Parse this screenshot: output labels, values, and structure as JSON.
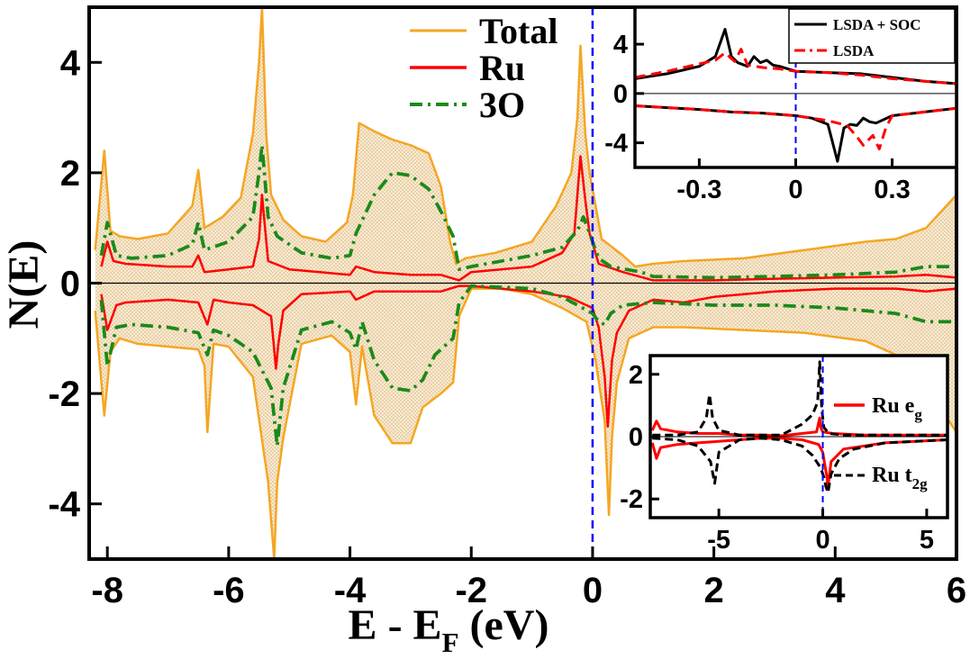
{
  "chart_data": [
    {
      "type": "line",
      "title": "",
      "xlabel": "E - E",
      "xlabel_sub": "F",
      "xlabel_unit": " (eV)",
      "ylabel": "N(E)",
      "xlim": [
        -8.3,
        6
      ],
      "ylim": [
        -5,
        5
      ],
      "xticks": [
        -8,
        -6,
        -4,
        -2,
        0,
        2,
        4,
        6
      ],
      "yticks": [
        -4,
        -2,
        0,
        2,
        4
      ],
      "fermi_level": 0,
      "colors": {
        "Total": "#f5a623",
        "Ru": "#ff0000",
        "3O": "#1a8a1a",
        "fermi": "#0000ff",
        "fill": "#e8cfa0"
      },
      "series": [
        {
          "name": "Total",
          "style": "solid",
          "channel": "up",
          "x": [
            -8.2,
            -8.05,
            -7.95,
            -7.8,
            -7.5,
            -7.0,
            -6.6,
            -6.5,
            -6.4,
            -6.1,
            -5.8,
            -5.6,
            -5.5,
            -5.45,
            -5.38,
            -5.3,
            -5.1,
            -4.8,
            -4.4,
            -4.05,
            -3.95,
            -3.85,
            -3.6,
            -3.3,
            -3.0,
            -2.7,
            -2.5,
            -2.35,
            -2.25,
            -2.1,
            -1.6,
            -1.0,
            -0.6,
            -0.35,
            -0.25,
            -0.2,
            -0.12,
            -0.05,
            0.15,
            0.5,
            0.7,
            1.0,
            1.5,
            2.5,
            3.5,
            4.5,
            5.0,
            5.5,
            6.0
          ],
          "values": [
            0.6,
            2.4,
            0.95,
            0.85,
            0.8,
            0.9,
            1.4,
            2.05,
            1.0,
            1.2,
            1.55,
            2.7,
            4.0,
            5.0,
            2.7,
            1.6,
            1.15,
            0.85,
            0.75,
            1.1,
            1.6,
            2.9,
            2.75,
            2.6,
            2.5,
            2.35,
            1.75,
            0.75,
            0.35,
            0.45,
            0.55,
            0.75,
            1.4,
            2.0,
            3.0,
            4.3,
            2.7,
            2.0,
            0.8,
            0.5,
            0.3,
            0.35,
            0.4,
            0.45,
            0.6,
            0.75,
            0.8,
            1.0,
            1.6
          ]
        },
        {
          "name": "Total",
          "style": "solid",
          "channel": "down",
          "x": [
            -8.2,
            -8.05,
            -7.95,
            -7.8,
            -7.5,
            -7.0,
            -6.5,
            -6.4,
            -6.35,
            -6.25,
            -6.0,
            -5.6,
            -5.35,
            -5.25,
            -5.2,
            -5.1,
            -4.8,
            -4.3,
            -4.0,
            -3.9,
            -3.8,
            -3.6,
            -3.3,
            -3.0,
            -2.8,
            -2.5,
            -2.3,
            -2.2,
            -2.0,
            -1.5,
            -1.0,
            -0.5,
            -0.1,
            0.05,
            0.2,
            0.27,
            0.32,
            0.4,
            0.6,
            1.0,
            1.5,
            2.5,
            3.5,
            4.5,
            5.0,
            5.5,
            6.0
          ],
          "values": [
            -0.5,
            -2.4,
            -1.25,
            -1.0,
            -1.1,
            -1.15,
            -1.2,
            -1.5,
            -2.7,
            -1.1,
            -1.15,
            -1.7,
            -3.6,
            -5.0,
            -3.6,
            -2.8,
            -1.1,
            -0.95,
            -1.25,
            -2.2,
            -1.15,
            -2.4,
            -2.9,
            -2.9,
            -2.25,
            -2.0,
            -1.8,
            -0.6,
            -0.1,
            -0.1,
            -0.2,
            -0.45,
            -0.7,
            -1.4,
            -2.5,
            -4.2,
            -2.8,
            -1.8,
            -1.0,
            -0.8,
            -0.8,
            -0.85,
            -0.9,
            -1.05,
            -1.3,
            -1.9,
            -2.7
          ]
        },
        {
          "name": "Ru",
          "style": "solid",
          "channel": "up",
          "x": [
            -8.1,
            -8.0,
            -7.9,
            -7.7,
            -7.0,
            -6.6,
            -6.5,
            -6.4,
            -6.0,
            -5.6,
            -5.5,
            -5.45,
            -5.35,
            -5.0,
            -4.5,
            -4.0,
            -3.9,
            -3.6,
            -3.0,
            -2.5,
            -2.2,
            -2.0,
            -1.0,
            -0.5,
            -0.3,
            -0.2,
            -0.12,
            -0.05,
            0.1,
            0.5,
            1.0,
            2.0,
            3.0,
            4.0,
            5.0,
            5.5,
            6.0
          ],
          "values": [
            0.3,
            0.75,
            0.4,
            0.35,
            0.3,
            0.3,
            0.5,
            0.2,
            0.25,
            0.3,
            0.8,
            1.6,
            0.4,
            0.25,
            0.2,
            0.15,
            0.3,
            0.2,
            0.15,
            0.15,
            0.05,
            0.2,
            0.3,
            0.55,
            0.9,
            2.3,
            1.5,
            0.9,
            0.35,
            0.2,
            0.05,
            0.05,
            0.08,
            0.1,
            0.12,
            0.15,
            0.1
          ]
        },
        {
          "name": "Ru",
          "style": "solid",
          "channel": "down",
          "x": [
            -8.1,
            -8.0,
            -7.85,
            -7.7,
            -7.0,
            -6.5,
            -6.35,
            -6.25,
            -6.0,
            -5.6,
            -5.3,
            -5.22,
            -5.18,
            -5.1,
            -4.8,
            -4.0,
            -3.9,
            -3.6,
            -3.0,
            -2.5,
            -2.2,
            -2.0,
            -1.0,
            -0.4,
            0.0,
            0.1,
            0.2,
            0.25,
            0.32,
            0.4,
            0.6,
            1.0,
            1.5,
            2.0,
            3.0,
            4.0,
            5.0,
            5.5,
            6.0
          ],
          "values": [
            -0.2,
            -0.85,
            -0.4,
            -0.35,
            -0.3,
            -0.35,
            -0.75,
            -0.3,
            -0.35,
            -0.4,
            -0.6,
            -1.55,
            -1.1,
            -0.5,
            -0.2,
            -0.15,
            -0.3,
            -0.15,
            -0.15,
            -0.15,
            -0.05,
            -0.05,
            -0.15,
            -0.25,
            -0.45,
            -0.8,
            -1.7,
            -2.6,
            -1.4,
            -0.9,
            -0.5,
            -0.3,
            -0.35,
            -0.25,
            -0.15,
            -0.1,
            -0.1,
            -0.15,
            -0.1
          ]
        },
        {
          "name": "3O",
          "style": "dashdot",
          "channel": "up",
          "x": [
            -8.1,
            -8.0,
            -7.85,
            -7.6,
            -7.0,
            -6.6,
            -6.5,
            -6.4,
            -6.0,
            -5.6,
            -5.5,
            -5.45,
            -5.35,
            -5.2,
            -4.8,
            -4.3,
            -4.0,
            -3.9,
            -3.6,
            -3.3,
            -3.0,
            -2.7,
            -2.5,
            -2.3,
            -2.2,
            -2.0,
            -1.0,
            -0.5,
            -0.25,
            -0.15,
            -0.05,
            0.1,
            0.3,
            0.8,
            1.0,
            2.0,
            3.0,
            4.0,
            5.0,
            5.5,
            6.0
          ],
          "values": [
            0.5,
            1.1,
            0.5,
            0.45,
            0.5,
            0.7,
            1.1,
            0.6,
            0.75,
            1.2,
            2.0,
            2.5,
            1.2,
            0.85,
            0.55,
            0.45,
            0.5,
            0.9,
            1.6,
            2.0,
            1.95,
            1.7,
            1.3,
            0.85,
            0.25,
            0.3,
            0.5,
            0.65,
            0.95,
            1.2,
            0.9,
            0.45,
            0.3,
            0.2,
            0.12,
            0.1,
            0.12,
            0.15,
            0.2,
            0.3,
            0.3
          ]
        },
        {
          "name": "3O",
          "style": "dashdot",
          "channel": "down",
          "x": [
            -8.1,
            -8.0,
            -7.85,
            -7.6,
            -7.0,
            -6.5,
            -6.35,
            -6.25,
            -6.0,
            -5.6,
            -5.3,
            -5.2,
            -5.1,
            -4.8,
            -4.3,
            -4.0,
            -3.9,
            -3.8,
            -3.6,
            -3.3,
            -3.0,
            -2.8,
            -2.6,
            -2.3,
            -2.2,
            -2.0,
            -1.0,
            -0.5,
            0.0,
            0.1,
            0.2,
            0.3,
            0.5,
            1.0,
            2.0,
            3.0,
            4.0,
            5.0,
            5.5,
            6.0
          ],
          "values": [
            -0.3,
            -1.5,
            -0.8,
            -0.75,
            -0.8,
            -0.9,
            -1.3,
            -0.85,
            -0.95,
            -1.25,
            -1.9,
            -2.95,
            -1.9,
            -0.85,
            -0.7,
            -0.9,
            -1.2,
            -0.7,
            -1.4,
            -1.9,
            -1.95,
            -1.75,
            -1.3,
            -1.0,
            -0.35,
            -0.05,
            -0.1,
            -0.25,
            -0.55,
            -0.7,
            -0.75,
            -0.55,
            -0.4,
            -0.35,
            -0.4,
            -0.4,
            -0.45,
            -0.55,
            -0.7,
            -0.7
          ]
        }
      ]
    },
    {
      "type": "line",
      "title": "",
      "xlabel": "",
      "ylabel": "",
      "xlim": [
        -0.5,
        0.5
      ],
      "ylim": [
        -6,
        7
      ],
      "xticks": [
        -0.3,
        0,
        0.3
      ],
      "yticks": [
        -4,
        0,
        4
      ],
      "series": [
        {
          "name": "LSDA + SOC",
          "color": "#000000",
          "style": "solid",
          "channel": "up",
          "x": [
            -0.5,
            -0.4,
            -0.3,
            -0.25,
            -0.22,
            -0.2,
            -0.18,
            -0.15,
            -0.13,
            -0.11,
            -0.09,
            -0.07,
            -0.05,
            0.0,
            0.1,
            0.2,
            0.3,
            0.4,
            0.5
          ],
          "values": [
            1.2,
            1.6,
            2.2,
            3.0,
            5.2,
            3.0,
            2.5,
            2.2,
            3.0,
            2.5,
            2.7,
            2.3,
            2.2,
            1.8,
            1.7,
            1.6,
            1.3,
            1.0,
            0.8
          ]
        },
        {
          "name": "LSDA + SOC",
          "color": "#000000",
          "style": "solid",
          "channel": "down",
          "x": [
            -0.5,
            -0.3,
            -0.2,
            -0.1,
            0.0,
            0.05,
            0.1,
            0.13,
            0.15,
            0.17,
            0.19,
            0.21,
            0.23,
            0.25,
            0.3,
            0.4,
            0.5
          ],
          "values": [
            -1.0,
            -1.3,
            -1.5,
            -1.6,
            -1.8,
            -2.0,
            -2.5,
            -5.5,
            -2.8,
            -2.5,
            -2.6,
            -2.0,
            -2.3,
            -2.4,
            -1.8,
            -1.5,
            -1.2
          ]
        },
        {
          "name": "LSDA",
          "color": "#ff0000",
          "style": "dashed",
          "channel": "up",
          "x": [
            -0.5,
            -0.4,
            -0.3,
            -0.25,
            -0.22,
            -0.19,
            -0.17,
            -0.15,
            -0.1,
            -0.05,
            0.0,
            0.1,
            0.2,
            0.3,
            0.4,
            0.5
          ],
          "values": [
            1.3,
            1.8,
            2.4,
            2.7,
            3.3,
            2.6,
            3.6,
            2.3,
            2.1,
            2.0,
            1.8,
            1.7,
            1.5,
            1.2,
            1.0,
            0.8
          ]
        },
        {
          "name": "LSDA",
          "color": "#ff0000",
          "style": "dashed",
          "channel": "down",
          "x": [
            -0.5,
            -0.3,
            -0.2,
            -0.1,
            0.0,
            0.1,
            0.16,
            0.19,
            0.21,
            0.24,
            0.26,
            0.28,
            0.3,
            0.4,
            0.5
          ],
          "values": [
            -1.0,
            -1.3,
            -1.5,
            -1.6,
            -1.8,
            -2.2,
            -2.6,
            -3.5,
            -4.2,
            -3.4,
            -4.5,
            -2.8,
            -1.8,
            -1.5,
            -1.2
          ]
        }
      ]
    },
    {
      "type": "line",
      "title": "",
      "xlabel": "",
      "ylabel": "",
      "xlim": [
        -8.3,
        6
      ],
      "ylim": [
        -2.6,
        2.6
      ],
      "xticks": [
        -5,
        0,
        5
      ],
      "yticks": [
        -2,
        0,
        2
      ],
      "series": [
        {
          "name": "Ru e",
          "sub": "g",
          "color": "#ff0000",
          "style": "solid",
          "channel": "up",
          "x": [
            -8.2,
            -8.0,
            -7.8,
            -7.0,
            -6.0,
            -5.0,
            -4.0,
            -3.0,
            -2.0,
            -1.0,
            -0.3,
            -0.15,
            -0.1,
            0.0,
            0.5,
            2.0,
            4.0,
            6.0
          ],
          "values": [
            0.2,
            0.5,
            0.25,
            0.15,
            0.1,
            0.1,
            0.05,
            0.05,
            0.03,
            0.1,
            0.15,
            0.6,
            0.3,
            0.15,
            0.1,
            0.05,
            0.05,
            0.05
          ]
        },
        {
          "name": "Ru e",
          "sub": "g",
          "color": "#ff0000",
          "style": "solid",
          "channel": "down",
          "x": [
            -8.2,
            -8.0,
            -7.8,
            -7.0,
            -6.0,
            -5.0,
            -4.0,
            -3.0,
            -2.0,
            -1.0,
            -0.2,
            0.0,
            0.1,
            0.2,
            0.25,
            0.4,
            1.0,
            3.0,
            6.0
          ],
          "values": [
            -0.2,
            -0.7,
            -0.35,
            -0.25,
            -0.2,
            -0.15,
            -0.1,
            -0.05,
            -0.05,
            -0.1,
            -0.25,
            -0.5,
            -0.9,
            -1.3,
            -1.6,
            -0.8,
            -0.4,
            -0.2,
            -0.1
          ]
        },
        {
          "name": "Ru t",
          "sub": "2g",
          "color": "#000000",
          "style": "dashed",
          "channel": "up",
          "x": [
            -8.2,
            -7.0,
            -6.0,
            -5.6,
            -5.45,
            -5.3,
            -5.0,
            -4.0,
            -3.0,
            -2.0,
            -1.0,
            -0.5,
            -0.25,
            -0.15,
            -0.05,
            0.05,
            0.3,
            1.0,
            3.0,
            6.0
          ],
          "values": [
            0.05,
            0.05,
            0.15,
            0.6,
            1.35,
            0.6,
            0.2,
            0.05,
            0.05,
            0.05,
            0.4,
            0.7,
            1.1,
            2.4,
            0.9,
            0.3,
            0.1,
            0.05,
            0.05,
            0.05
          ]
        },
        {
          "name": "Ru t",
          "sub": "2g",
          "color": "#000000",
          "style": "dashed",
          "channel": "down",
          "x": [
            -8.2,
            -7.0,
            -6.0,
            -5.4,
            -5.2,
            -5.0,
            -4.0,
            -3.0,
            -2.0,
            -1.0,
            -0.5,
            -0.1,
            0.05,
            0.15,
            0.25,
            0.4,
            0.8,
            1.5,
            3.0,
            6.0
          ],
          "values": [
            -0.05,
            -0.1,
            -0.3,
            -0.8,
            -1.5,
            -0.5,
            -0.1,
            -0.05,
            -0.1,
            -0.3,
            -0.6,
            -1.0,
            -1.3,
            -1.6,
            -1.8,
            -1.2,
            -0.7,
            -0.4,
            -0.2,
            -0.1
          ]
        }
      ]
    }
  ]
}
